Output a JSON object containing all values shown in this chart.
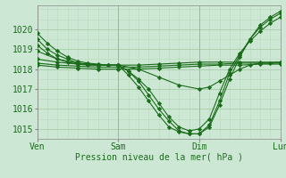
{
  "title": "",
  "xlabel": "Pression niveau de la mer( hPa )",
  "ylim": [
    1014.5,
    1021.2
  ],
  "xlim": [
    0,
    72
  ],
  "bg_color": "#cce8d4",
  "plot_bg_color": "#cce8d4",
  "line_color": "#1a6b1a",
  "grid_color_major": "#a8cca8",
  "grid_color_minor": "#b8d8b8",
  "tick_label_color": "#1a6b1a",
  "xlabel_color": "#1a6b1a",
  "day_labels": [
    "Ven",
    "Sam",
    "Dim",
    "Lun"
  ],
  "day_positions": [
    0,
    24,
    48,
    72
  ],
  "yticks": [
    1015,
    1016,
    1017,
    1018,
    1019,
    1020
  ],
  "series": [
    {
      "x": [
        0,
        3,
        6,
        9,
        12,
        15,
        18,
        21,
        24,
        27,
        30,
        33,
        36,
        39,
        42,
        45,
        48,
        51,
        54,
        57,
        60,
        63,
        66,
        69,
        72
      ],
      "y": [
        1019.8,
        1019.3,
        1018.9,
        1018.6,
        1018.4,
        1018.3,
        1018.25,
        1018.2,
        1018.2,
        1017.9,
        1017.4,
        1016.7,
        1016.0,
        1015.4,
        1014.9,
        1014.75,
        1014.75,
        1015.1,
        1016.2,
        1017.5,
        1018.6,
        1019.5,
        1020.2,
        1020.6,
        1020.9
      ]
    },
    {
      "x": [
        0,
        3,
        6,
        9,
        12,
        15,
        18,
        21,
        24,
        27,
        30,
        33,
        36,
        39,
        42,
        45,
        48,
        51,
        54,
        57,
        60,
        63,
        66,
        69,
        72
      ],
      "y": [
        1019.5,
        1019.0,
        1018.7,
        1018.5,
        1018.3,
        1018.25,
        1018.2,
        1018.2,
        1018.2,
        1017.7,
        1017.1,
        1016.4,
        1015.7,
        1015.1,
        1014.85,
        1014.75,
        1014.75,
        1015.2,
        1016.4,
        1017.8,
        1018.7,
        1019.5,
        1020.1,
        1020.5,
        1020.8
      ]
    },
    {
      "x": [
        0,
        3,
        6,
        9,
        12,
        15,
        18,
        21,
        24,
        27,
        30,
        33,
        36,
        39,
        42,
        45,
        48,
        51,
        54,
        57,
        60,
        63,
        66,
        69,
        72
      ],
      "y": [
        1019.2,
        1018.8,
        1018.5,
        1018.35,
        1018.25,
        1018.2,
        1018.2,
        1018.2,
        1018.2,
        1017.9,
        1017.5,
        1017.0,
        1016.3,
        1015.6,
        1015.1,
        1014.9,
        1015.0,
        1015.5,
        1016.8,
        1018.0,
        1018.8,
        1019.4,
        1019.9,
        1020.3,
        1020.6
      ]
    },
    {
      "x": [
        0,
        6,
        12,
        18,
        24,
        30,
        36,
        42,
        48,
        54,
        60,
        66,
        72
      ],
      "y": [
        1018.5,
        1018.35,
        1018.25,
        1018.2,
        1018.2,
        1018.2,
        1018.25,
        1018.3,
        1018.35,
        1018.35,
        1018.35,
        1018.35,
        1018.35
      ]
    },
    {
      "x": [
        0,
        6,
        12,
        18,
        24,
        30,
        36,
        42,
        48,
        54,
        60,
        66,
        72
      ],
      "y": [
        1018.3,
        1018.2,
        1018.15,
        1018.1,
        1018.1,
        1018.1,
        1018.15,
        1018.2,
        1018.25,
        1018.25,
        1018.3,
        1018.3,
        1018.3
      ]
    },
    {
      "x": [
        0,
        6,
        12,
        18,
        24,
        30,
        36,
        42,
        48,
        54,
        60,
        66,
        72
      ],
      "y": [
        1018.2,
        1018.1,
        1018.05,
        1018.0,
        1018.0,
        1018.0,
        1018.05,
        1018.1,
        1018.15,
        1018.2,
        1018.2,
        1018.25,
        1018.25
      ]
    },
    {
      "x": [
        0,
        6,
        12,
        18,
        24,
        30,
        36,
        42,
        48,
        51,
        54,
        57,
        60,
        63,
        66,
        69,
        72
      ],
      "y": [
        1018.9,
        1018.5,
        1018.3,
        1018.2,
        1018.2,
        1018.0,
        1017.6,
        1017.2,
        1017.0,
        1017.1,
        1017.4,
        1017.7,
        1018.0,
        1018.2,
        1018.3,
        1018.3,
        1018.35
      ]
    }
  ]
}
